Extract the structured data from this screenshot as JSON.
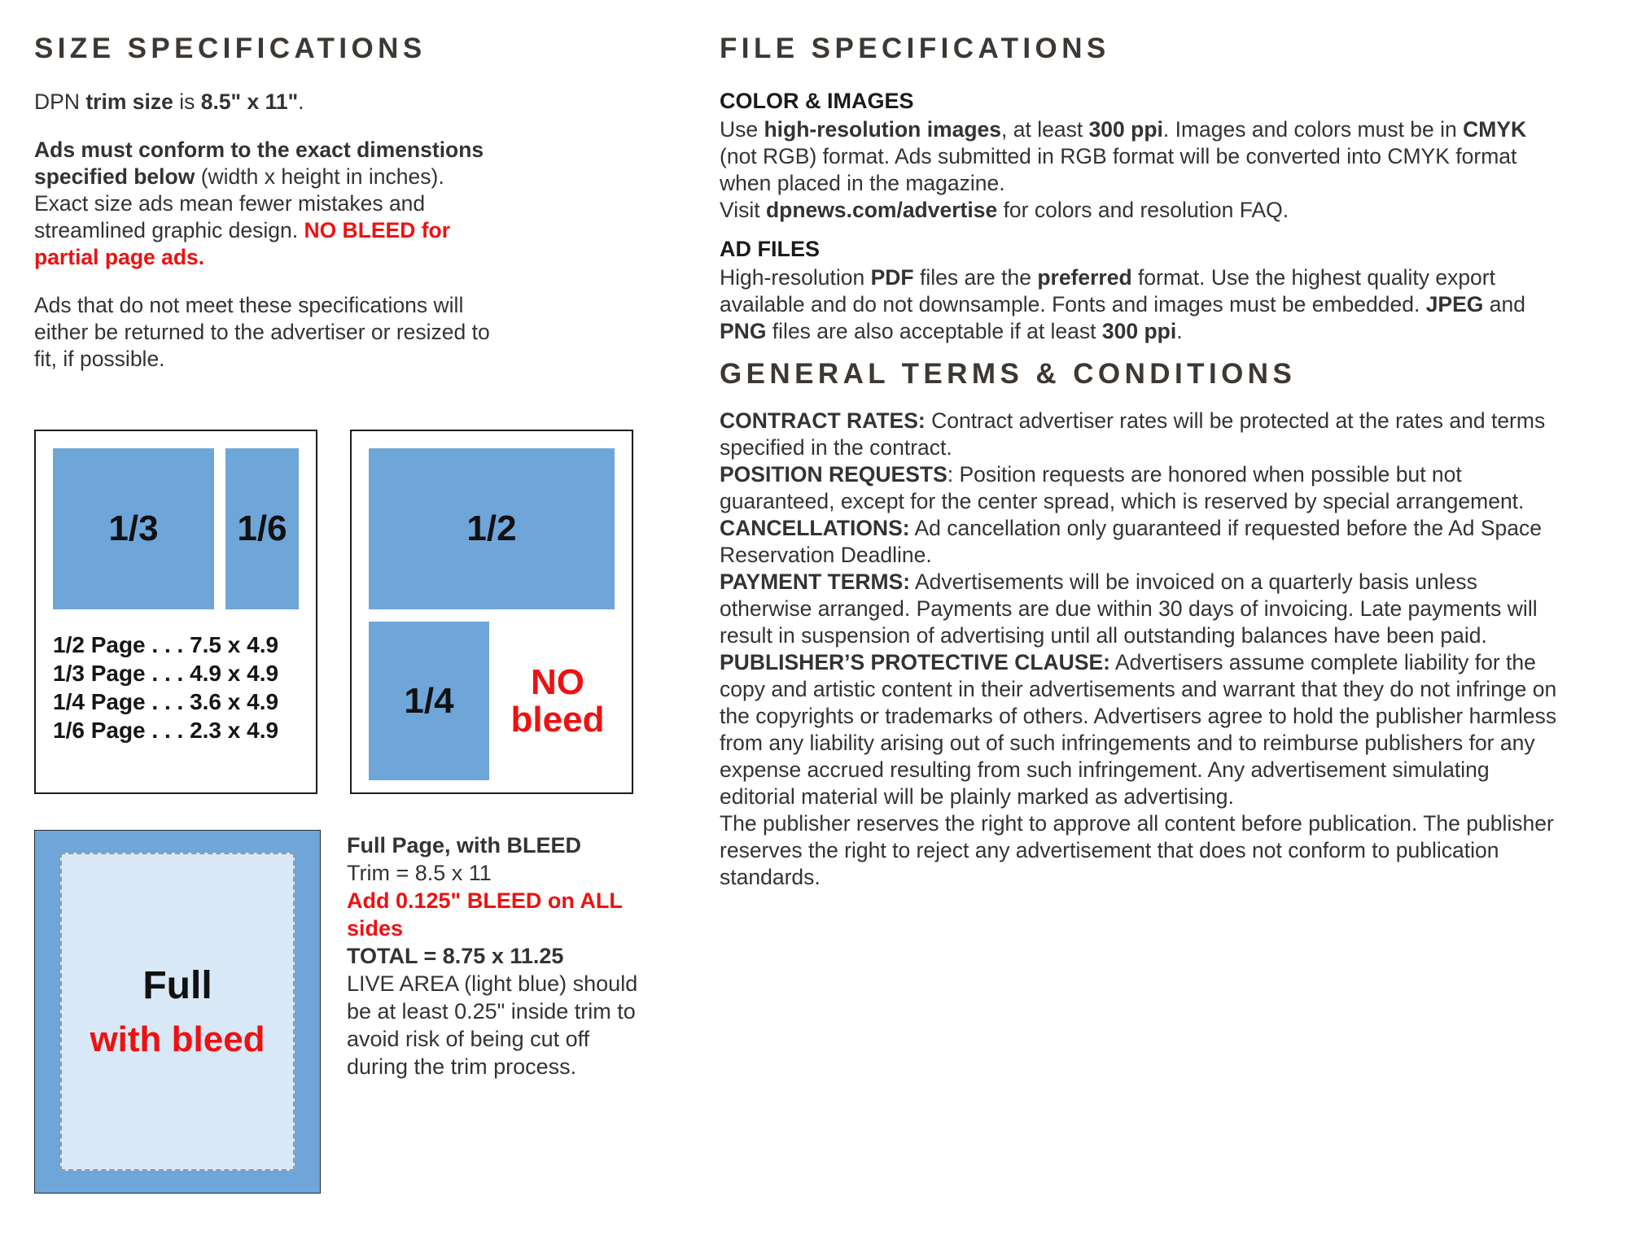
{
  "colors": {
    "heading": "#3d3833",
    "body": "#333333",
    "accent_red": "#ee1111",
    "box_blue": "#6fa6d9",
    "live_blue": "#d9e8f6"
  },
  "size_specs": {
    "heading": "SIZE SPECIFICATIONS",
    "trim_paragraph": [
      {
        "t": "DPN "
      },
      {
        "t": "trim size",
        "s": "b"
      },
      {
        "t": " is "
      },
      {
        "t": "8.5\" x 11\"",
        "s": "b"
      },
      {
        "t": "."
      }
    ],
    "conform_paragraph": [
      {
        "t": "Ads must conform to the exact dimenstions specified below",
        "s": "b"
      },
      {
        "t": " (width x height in inches). Exact size ads mean fewer mistakes and streamlined graphic design. "
      },
      {
        "t": "NO BLEED for partial page ads.",
        "s": "rb"
      }
    ],
    "return_paragraph": "Ads that do not meet these specifications will either be returned to the advertiser or resized to fit, if possible.",
    "partial_diagram": {
      "third_label": "1/3",
      "sixth_label": "1/6",
      "sizes": [
        "1/2 Page . . . 7.5 x 4.9",
        "1/3 Page . . . 4.9 x 4.9",
        "1/4 Page . . . 3.6 x 4.9",
        "1/6 Page . . . 2.3 x 4.9"
      ]
    },
    "half_diagram": {
      "half_label": "1/2",
      "quarter_label": "1/4",
      "no_bleed_label": "NO\nbleed"
    },
    "full_diagram": {
      "full_label": "Full",
      "with_bleed_label": "with bleed"
    },
    "bleed_note": [
      {
        "t": "Full Page, with BLEED",
        "s": "b"
      },
      {
        "t": "\nTrim = 8.5 x 11"
      },
      {
        "t": "\nAdd 0.125\"  BLEED on ALL sides",
        "s": "rb"
      },
      {
        "t": "\nTOTAL = 8.75 x 11.25",
        "s": "b"
      },
      {
        "t": "\nLIVE AREA (light blue) should be at least 0.25\" inside trim to avoid risk of being cut off during the trim process."
      }
    ]
  },
  "file_specs": {
    "heading": "FILE SPECIFICATIONS",
    "color_images": {
      "title": "COLOR & IMAGES",
      "body": [
        {
          "t": "Use "
        },
        {
          "t": "high-resolution images",
          "s": "b"
        },
        {
          "t": ", at least "
        },
        {
          "t": "300 ppi",
          "s": "b"
        },
        {
          "t": ". Images and colors must be in "
        },
        {
          "t": "CMYK",
          "s": "b"
        },
        {
          "t": " (not RGB) format. Ads submitted in RGB format will be converted into CMYK format when placed in the magazine.\nVisit "
        },
        {
          "t": "dpnews.com/advertise",
          "s": "b",
          "n": "advertise-url"
        },
        {
          "t": " for colors and resolution FAQ."
        }
      ]
    },
    "ad_files": {
      "title": "AD FILES",
      "body": [
        {
          "t": "High-resolution "
        },
        {
          "t": "PDF",
          "s": "b"
        },
        {
          "t": " files are the "
        },
        {
          "t": "preferred",
          "s": "b"
        },
        {
          "t": " format. Use the highest quality export available and do not downsample. Fonts and images must be embedded. "
        },
        {
          "t": "JPEG",
          "s": "b"
        },
        {
          "t": " and "
        },
        {
          "t": "PNG",
          "s": "b"
        },
        {
          "t": " files are also acceptable if at least "
        },
        {
          "t": "300 ppi",
          "s": "b"
        },
        {
          "t": "."
        }
      ]
    }
  },
  "terms": {
    "heading": "GENERAL TERMS & CONDITIONS",
    "items": [
      [
        {
          "t": "CONTRACT RATES:",
          "s": "b"
        },
        {
          "t": " Contract advertiser rates will be protected at the rates and terms specified in the contract."
        }
      ],
      [
        {
          "t": "POSITION REQUESTS",
          "s": "b"
        },
        {
          "t": ": Position requests are honored when possible but not guaranteed, except for the center spread, which is reserved by special arrangement."
        }
      ],
      [
        {
          "t": "CANCELLATIONS:",
          "s": "b"
        },
        {
          "t": " Ad cancellation only guaranteed if requested before the Ad Space Reservation Deadline."
        }
      ],
      [
        {
          "t": "PAYMENT TERMS:",
          "s": "b"
        },
        {
          "t": " Advertisements will be invoiced on a quarterly basis unless otherwise arranged. Payments are due within 30 days of invoicing. Late payments will result in suspension of advertising until all outstanding balances have been paid."
        }
      ],
      [
        {
          "t": "PUBLISHER’S PROTECTIVE CLAUSE:",
          "s": "b"
        },
        {
          "t": " Advertisers assume complete liability for the copy and artistic content in their advertisements and warrant that they do not infringe on the copyrights or trademarks of others. Advertisers agree to hold the publisher harmless from any liability arising out of such infringements and to reimburse publishers for any expense accrued resulting from such infringement. Any advertisement simulating editorial material will be plainly marked as advertising.\nThe publisher reserves the right to approve all content before publication. The publisher reserves the right to reject any advertisement that does not conform to publication standards."
        }
      ]
    ]
  }
}
